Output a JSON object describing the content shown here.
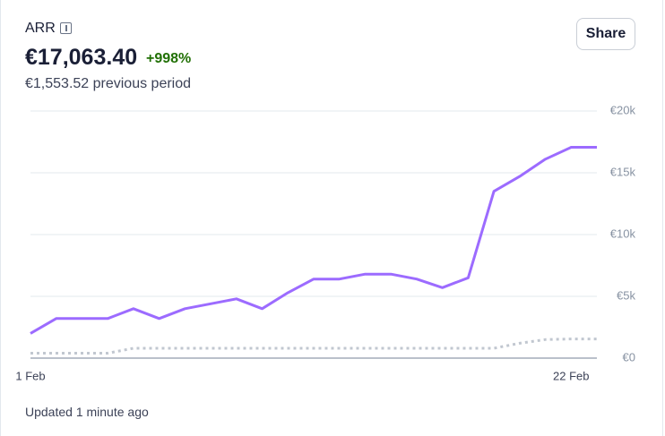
{
  "header": {
    "title": "ARR",
    "value": "€17,063.40",
    "change": "+998%",
    "previous": "€1,553.52 previous period",
    "share": "Share"
  },
  "chart_data": {
    "type": "line",
    "categories": [
      "1 Feb",
      null,
      null,
      null,
      null,
      null,
      null,
      null,
      null,
      null,
      null,
      null,
      null,
      null,
      null,
      null,
      null,
      null,
      null,
      null,
      null,
      "22 Feb",
      null
    ],
    "series": [
      {
        "color": "#9c6bff",
        "style": "solid",
        "values": [
          2000,
          3200,
          3200,
          3200,
          4000,
          3200,
          4000,
          4400,
          4800,
          4000,
          5300,
          6400,
          6400,
          6800,
          6800,
          6400,
          5700,
          6500,
          13500,
          14700,
          16100,
          17063.4,
          17063.4
        ]
      },
      {
        "color": "#c1c7d0",
        "style": "dotted",
        "values": [
          400,
          400,
          400,
          400,
          800,
          800,
          800,
          800,
          800,
          800,
          800,
          800,
          800,
          800,
          800,
          800,
          800,
          800,
          800,
          1200,
          1500,
          1553.52,
          1553.52
        ]
      }
    ],
    "ylim": [
      0,
      20000
    ],
    "yticks": [
      {
        "value": 0,
        "label": "€0"
      },
      {
        "value": 5000,
        "label": "€5k"
      },
      {
        "value": 10000,
        "label": "€10k"
      },
      {
        "value": 15000,
        "label": "€15k"
      },
      {
        "value": 20000,
        "label": "€20k"
      }
    ],
    "grid": true
  },
  "footer": {
    "updated": "Updated 1 minute ago"
  }
}
